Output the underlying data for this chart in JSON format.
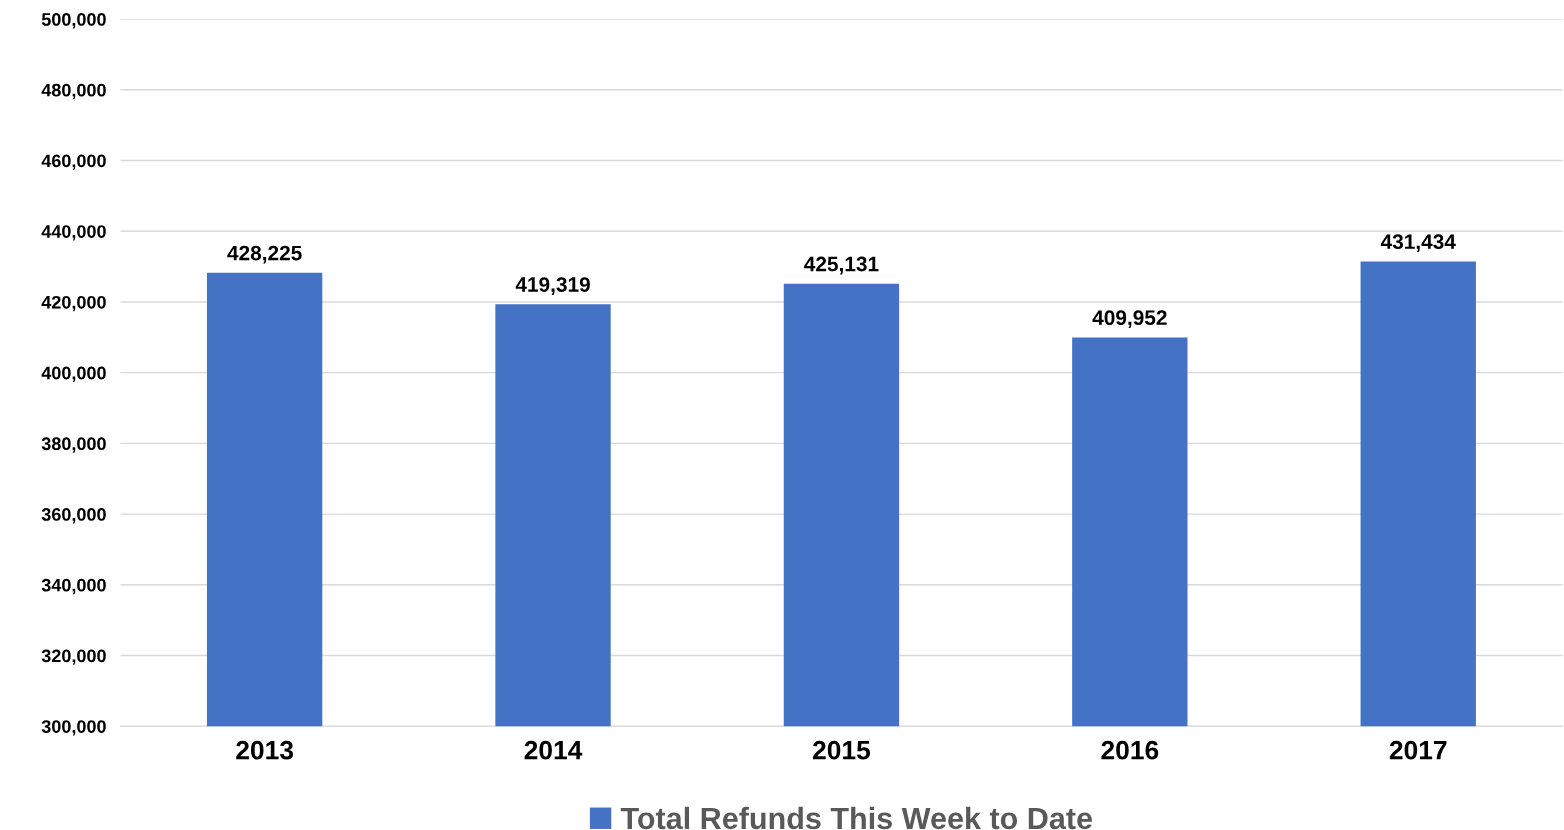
{
  "chart_data": {
    "type": "bar",
    "categories": [
      "2013",
      "2014",
      "2015",
      "2016",
      "2017"
    ],
    "series": [
      {
        "name": "Total Refunds This Week to Date",
        "color": "#4472c4",
        "values": [
          428225,
          419319,
          425131,
          409952,
          431434
        ],
        "value_labels": [
          "428,225",
          "419,319",
          "425,131",
          "409,952",
          "431,434"
        ]
      }
    ],
    "ylim": [
      300000,
      500000
    ],
    "yticks": [
      {
        "value": 300000,
        "label": "300,000"
      },
      {
        "value": 320000,
        "label": "320,000"
      },
      {
        "value": 340000,
        "label": "340,000"
      },
      {
        "value": 360000,
        "label": "360,000"
      },
      {
        "value": 380000,
        "label": "380,000"
      },
      {
        "value": 400000,
        "label": "400,000"
      },
      {
        "value": 420000,
        "label": "420,000"
      },
      {
        "value": 440000,
        "label": "440,000"
      },
      {
        "value": 460000,
        "label": "460,000"
      },
      {
        "value": 480000,
        "label": "480,000"
      },
      {
        "value": 500000,
        "label": "500,000"
      }
    ],
    "grid": "y",
    "legend": "bottom"
  }
}
